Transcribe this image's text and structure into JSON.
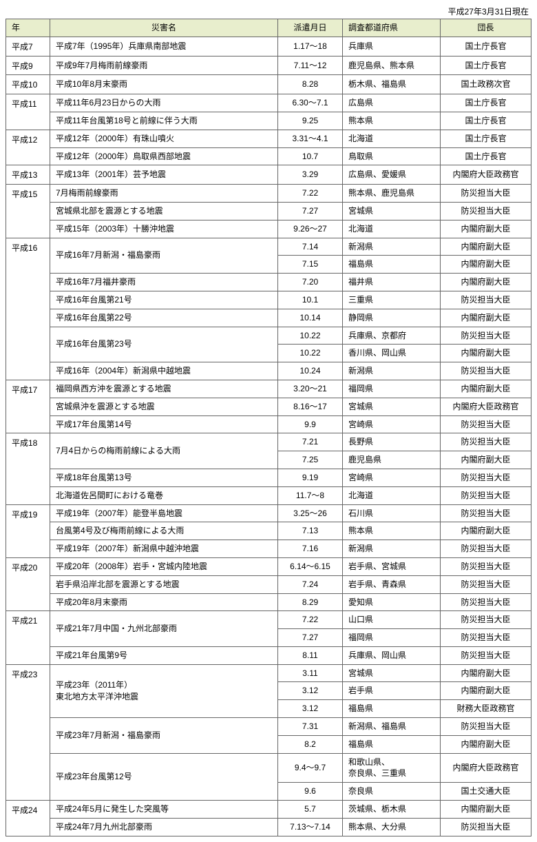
{
  "header_date": "平成27年3月31日現在",
  "columns": {
    "year": "年",
    "name": "災害名",
    "date": "派遣月日",
    "pref": "調査都道府県",
    "lead": "団長"
  },
  "rows": [
    {
      "year": "平成7",
      "year_span": 1,
      "name": "平成7年（1995年）兵庫県南部地震",
      "name_span": 1,
      "date": "1.17～18",
      "pref": "兵庫県",
      "lead": "国土庁長官"
    },
    {
      "year": "平成9",
      "year_span": 1,
      "name": "平成9年7月梅雨前線豪雨",
      "name_span": 1,
      "date": "7.11～12",
      "pref": "鹿児島県、熊本県",
      "lead": "国土庁長官"
    },
    {
      "year": "平成10",
      "year_span": 1,
      "name": "平成10年8月末豪雨",
      "name_span": 1,
      "date": "8.28",
      "pref": "栃木県、福島県",
      "lead": "国土政務次官"
    },
    {
      "year": "平成11",
      "year_span": 2,
      "name": "平成11年6月23日からの大雨",
      "name_span": 1,
      "date": "6.30～7.1",
      "pref": "広島県",
      "lead": "国土庁長官"
    },
    {
      "name": "平成11年台風第18号と前線に伴う大雨",
      "name_span": 1,
      "date": "9.25",
      "pref": "熊本県",
      "lead": "国土庁長官"
    },
    {
      "year": "平成12",
      "year_span": 2,
      "name": "平成12年（2000年）有珠山噴火",
      "name_span": 1,
      "date": "3.31～4.1",
      "pref": "北海道",
      "lead": "国土庁長官"
    },
    {
      "name": "平成12年（2000年）鳥取県西部地震",
      "name_span": 1,
      "date": "10.7",
      "pref": "鳥取県",
      "lead": "国土庁長官"
    },
    {
      "year": "平成13",
      "year_span": 1,
      "name": "平成13年（2001年）芸予地震",
      "name_span": 1,
      "date": "3.29",
      "pref": "広島県、愛媛県",
      "lead": "内閣府大臣政務官"
    },
    {
      "year": "平成15",
      "year_span": 3,
      "name": "7月梅雨前線豪雨",
      "name_span": 1,
      "date": "7.22",
      "pref": "熊本県、鹿児島県",
      "lead": "防災担当大臣"
    },
    {
      "name": "宮城県北部を震源とする地震",
      "name_span": 1,
      "date": "7.27",
      "pref": "宮城県",
      "lead": "防災担当大臣"
    },
    {
      "name": "平成15年（2003年）十勝沖地震",
      "name_span": 1,
      "date": "9.26～27",
      "pref": "北海道",
      "lead": "内閣府副大臣"
    },
    {
      "year": "平成16",
      "year_span": 8,
      "name": "平成16年7月新潟・福島豪雨",
      "name_span": 2,
      "date": "7.14",
      "pref": "新潟県",
      "lead": "内閣府副大臣"
    },
    {
      "date": "7.15",
      "pref": "福島県",
      "lead": "内閣府副大臣"
    },
    {
      "name": "平成16年7月福井豪雨",
      "name_span": 1,
      "date": "7.20",
      "pref": "福井県",
      "lead": "内閣府副大臣"
    },
    {
      "name": "平成16年台風第21号",
      "name_span": 1,
      "date": "10.1",
      "pref": "三重県",
      "lead": "防災担当大臣"
    },
    {
      "name": "平成16年台風第22号",
      "name_span": 1,
      "date": "10.14",
      "pref": "静岡県",
      "lead": "内閣府副大臣"
    },
    {
      "name": "平成16年台風第23号",
      "name_span": 2,
      "date": "10.22",
      "pref": "兵庫県、京都府",
      "lead": "防災担当大臣"
    },
    {
      "date": "10.22",
      "pref": "香川県、岡山県",
      "lead": "内閣府副大臣"
    },
    {
      "name": "平成16年（2004年）新潟県中越地震",
      "name_span": 1,
      "date": "10.24",
      "pref": "新潟県",
      "lead": "防災担当大臣"
    },
    {
      "year": "平成17",
      "year_span": 3,
      "name": "福岡県西方沖を震源とする地震",
      "name_span": 1,
      "date": "3.20～21",
      "pref": "福岡県",
      "lead": "内閣府副大臣"
    },
    {
      "name": "宮城県沖を震源とする地震",
      "name_span": 1,
      "date": "8.16～17",
      "pref": "宮城県",
      "lead": "内閣府大臣政務官"
    },
    {
      "name": "平成17年台風第14号",
      "name_span": 1,
      "date": "9.9",
      "pref": "宮崎県",
      "lead": "防災担当大臣"
    },
    {
      "year": "平成18",
      "year_span": 4,
      "name": "7月4日からの梅雨前線による大雨",
      "name_span": 2,
      "date": "7.21",
      "pref": "長野県",
      "lead": "防災担当大臣"
    },
    {
      "date": "7.25",
      "pref": "鹿児島県",
      "lead": "内閣府副大臣"
    },
    {
      "name": "平成18年台風第13号",
      "name_span": 1,
      "date": "9.19",
      "pref": "宮崎県",
      "lead": "防災担当大臣"
    },
    {
      "name": "北海道佐呂間町における竜巻",
      "name_span": 1,
      "date": "11.7～8",
      "pref": "北海道",
      "lead": "防災担当大臣"
    },
    {
      "year": "平成19",
      "year_span": 3,
      "name": "平成19年（2007年）能登半島地震",
      "name_span": 1,
      "date": "3.25～26",
      "pref": "石川県",
      "lead": "防災担当大臣"
    },
    {
      "name": "台風第4号及び梅雨前線による大雨",
      "name_span": 1,
      "date": "7.13",
      "pref": "熊本県",
      "lead": "内閣府副大臣"
    },
    {
      "name": "平成19年（2007年）新潟県中越沖地震",
      "name_span": 1,
      "date": "7.16",
      "pref": "新潟県",
      "lead": "防災担当大臣"
    },
    {
      "year": "平成20",
      "year_span": 3,
      "name": "平成20年（2008年）岩手・宮城内陸地震",
      "name_span": 1,
      "date": "6.14～6.15",
      "pref": "岩手県、宮城県",
      "lead": "防災担当大臣"
    },
    {
      "name": "岩手県沿岸北部を震源とする地震",
      "name_span": 1,
      "date": "7.24",
      "pref": "岩手県、青森県",
      "lead": "防災担当大臣"
    },
    {
      "name": "平成20年8月末豪雨",
      "name_span": 1,
      "date": "8.29",
      "pref": "愛知県",
      "lead": "防災担当大臣"
    },
    {
      "year": "平成21",
      "year_span": 3,
      "name": "平成21年7月中国・九州北部豪雨",
      "name_span": 2,
      "date": "7.22",
      "pref": "山口県",
      "lead": "防災担当大臣"
    },
    {
      "date": "7.27",
      "pref": "福岡県",
      "lead": "防災担当大臣"
    },
    {
      "name": "平成21年台風第9号",
      "name_span": 1,
      "date": "8.11",
      "pref": "兵庫県、岡山県",
      "lead": "防災担当大臣"
    },
    {
      "year": "平成23",
      "year_span": 7,
      "name": "平成23年（2011年）\n東北地方太平洋沖地震",
      "name_span": 3,
      "date": "3.11",
      "pref": "宮城県",
      "lead": "内閣府副大臣"
    },
    {
      "date": "3.12",
      "pref": "岩手県",
      "lead": "内閣府副大臣"
    },
    {
      "date": "3.12",
      "pref": "福島県",
      "lead": "財務大臣政務官"
    },
    {
      "name": "平成23年7月新潟・福島豪雨",
      "name_span": 2,
      "date": "7.31",
      "pref": "新潟県、福島県",
      "lead": "防災担当大臣"
    },
    {
      "date": "8.2",
      "pref": "福島県",
      "lead": "内閣府副大臣"
    },
    {
      "name": "平成23年台風第12号",
      "name_span": 2,
      "date": "9.4～9.7",
      "pref": "和歌山県、\n奈良県、三重県",
      "lead": "内閣府大臣政務官"
    },
    {
      "date": "9.6",
      "pref": "奈良県",
      "lead": "国土交通大臣"
    },
    {
      "year": "平成24",
      "year_span": 2,
      "name": "平成24年5月に発生した突風等",
      "name_span": 1,
      "date": "5.7",
      "pref": "茨城県、栃木県",
      "lead": "内閣府副大臣"
    },
    {
      "name": "平成24年7月九州北部豪雨",
      "name_span": 1,
      "date": "7.13～7.14",
      "pref": "熊本県、大分県",
      "lead": "防災担当大臣"
    }
  ]
}
